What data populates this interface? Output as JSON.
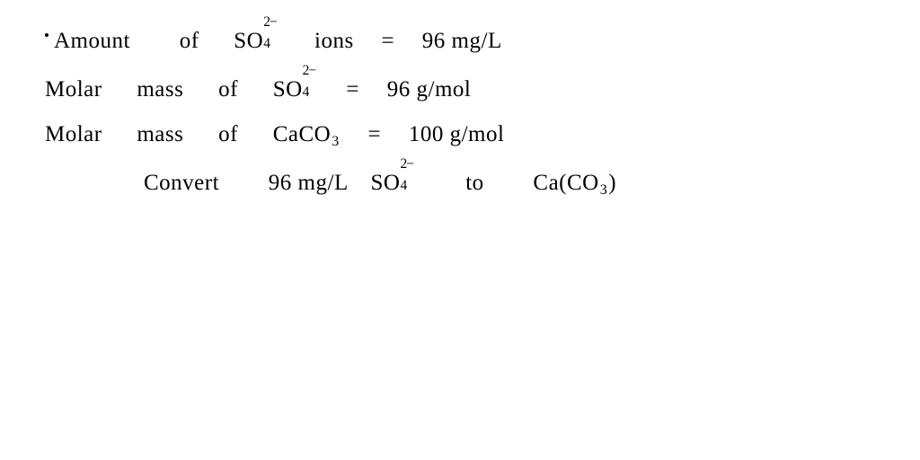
{
  "text_color": "#000000",
  "background_color": "#ffffff",
  "font_family": "cursive",
  "font_size_pt": 19,
  "line1": {
    "w1": "Amount",
    "w2": "of",
    "species_base": "SO",
    "species_sub": "4",
    "species_sup": "2−",
    "w3": "ions",
    "eq": "=",
    "value": "96 mg/L"
  },
  "line2": {
    "w1": "Molar",
    "w2": "mass",
    "w3": "of",
    "species_base": "SO",
    "species_sub": "4",
    "species_sup": "2−",
    "eq": "=",
    "value": "96 g/mol"
  },
  "line3": {
    "w1": "Molar",
    "w2": "mass",
    "w3": "of",
    "species_base1": "Ca",
    "species_base2": "CO",
    "species_sub": "3",
    "eq": "=",
    "value": "100 g/mol"
  },
  "line4": {
    "w1": "Convert",
    "value": "96 mg/L",
    "species1_base": "SO",
    "species1_sub": "4",
    "species1_sup": "2−",
    "w2": "to",
    "species2_open": "Ca(",
    "species2_base": "CO",
    "species2_sub": "3",
    "species2_close": ")"
  }
}
